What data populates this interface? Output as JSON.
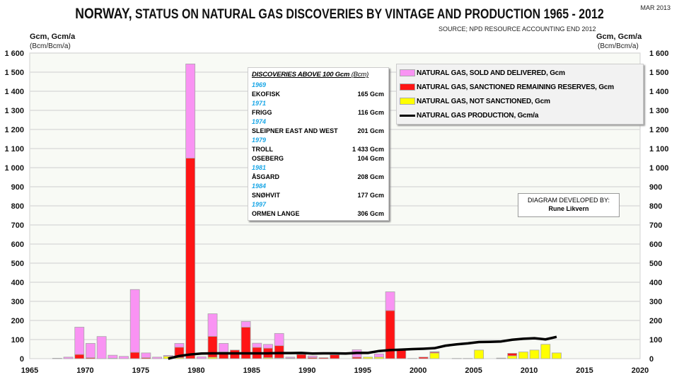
{
  "header": {
    "title_part1": "NORWAY,",
    "title_part2": " STATUS ON NATURAL GAS DISCOVERIES BY VINTAGE AND PRODUCTION 1965 - 2012",
    "date": "MAR 2013",
    "source": "SOURCE; NPD RESOURCE ACCOUNTING  END 2012",
    "left_unit": "Gcm, Gcm/a",
    "left_unit_sub": "(Bcm/Bcm/a)",
    "right_unit": "Gcm, Gcm/a",
    "right_unit_sub": "(Bcm/Bcm/a)"
  },
  "inset": {
    "heading": "DISCOVERIES ABOVE 100 Gcm",
    "heading_sub": "(Bcm)",
    "entries": [
      {
        "year": "1969"
      },
      {
        "name": "EKOFISK",
        "value": "165 Gcm"
      },
      {
        "year": "1971"
      },
      {
        "name": "FRIGG",
        "value": "116 Gcm"
      },
      {
        "year": "1974"
      },
      {
        "name": "SLEIPNER EAST AND WEST",
        "value": "201 Gcm"
      },
      {
        "year": "1979"
      },
      {
        "name": "TROLL",
        "value": "1 433 Gcm"
      },
      {
        "name": "OSEBERG",
        "value": "104 Gcm"
      },
      {
        "year": "1981"
      },
      {
        "name": "ÅSGARD",
        "value": "208 Gcm"
      },
      {
        "year": "1984"
      },
      {
        "name": "SNØHVIT",
        "value": "177 Gcm"
      },
      {
        "year": "1997"
      },
      {
        "name": "ORMEN LANGE",
        "value": "306 Gcm"
      }
    ]
  },
  "developer": {
    "label": "DIAGRAM DEVELOPED BY:",
    "name": "Rune Likvern"
  },
  "colors": {
    "sold": "#f993f3",
    "sanctioned": "#ff1515",
    "not_sanctioned": "#ffff00",
    "production": "#000000",
    "plot_bg": "#f8faf5"
  },
  "chart_data": {
    "type": "bar",
    "title": "NORWAY, STATUS ON NATURAL GAS DISCOVERIES BY VINTAGE AND PRODUCTION 1965 - 2012",
    "xlabel": "",
    "ylabel": "Gcm, Gcm/a",
    "xlim": [
      1965,
      2020
    ],
    "ylim": [
      0,
      1600
    ],
    "x_ticks": [
      1965,
      1970,
      1975,
      1980,
      1985,
      1990,
      1995,
      2000,
      2005,
      2010,
      2015,
      2020
    ],
    "y_ticks": [
      0,
      100,
      200,
      300,
      400,
      500,
      600,
      700,
      800,
      900,
      1000,
      1100,
      1200,
      1300,
      1400,
      1500,
      1600
    ],
    "y_tick_labels": [
      "0",
      "100",
      "200",
      "300",
      "400",
      "500",
      "600",
      "700",
      "800",
      "900",
      "1 000",
      "1 100",
      "1 200",
      "1 300",
      "1 400",
      "1 500",
      "1 600"
    ],
    "grid": true,
    "legend_position": "top-right",
    "legend": [
      {
        "key": "sold",
        "label": "NATURAL GAS, SOLD AND DELIVERED, Gcm"
      },
      {
        "key": "sanctioned",
        "label": "NATURAL GAS, SANCTIONED REMAINING RESERVES,  Gcm"
      },
      {
        "key": "not_sanctioned",
        "label": "NATURAL GAS, NOT SANCTIONED,  Gcm"
      },
      {
        "key": "production",
        "label": "NATURAL GAS PRODUCTION,  Gcm/a"
      }
    ],
    "years": [
      1967,
      1968,
      1969,
      1970,
      1971,
      1972,
      1973,
      1974,
      1975,
      1976,
      1977,
      1978,
      1979,
      1980,
      1981,
      1982,
      1983,
      1984,
      1985,
      1986,
      1987,
      1988,
      1989,
      1990,
      1991,
      1992,
      1993,
      1994,
      1995,
      1996,
      1997,
      1998,
      1999,
      2000,
      2001,
      2002,
      2003,
      2004,
      2005,
      2006,
      2007,
      2008,
      2009,
      2010,
      2011,
      2012
    ],
    "series": [
      {
        "name": "not_sanctioned",
        "values": [
          0,
          0,
          0,
          0,
          0,
          0,
          0,
          0,
          0,
          0,
          12,
          5,
          0,
          0,
          7,
          0,
          0,
          0,
          0,
          5,
          3,
          0,
          0,
          0,
          0,
          0,
          0,
          0,
          8,
          8,
          0,
          0,
          0,
          0,
          30,
          0,
          0,
          0,
          45,
          0,
          0,
          15,
          35,
          45,
          75,
          30
        ]
      },
      {
        "name": "sanctioned",
        "values": [
          0,
          0,
          22,
          5,
          0,
          2,
          0,
          33,
          5,
          0,
          0,
          55,
          1050,
          0,
          110,
          35,
          45,
          165,
          59,
          50,
          65,
          3,
          22,
          6,
          5,
          20,
          0,
          8,
          0,
          0,
          252,
          48,
          0,
          8,
          5,
          0,
          0,
          0,
          0,
          0,
          0,
          13,
          0,
          0,
          0,
          0
        ]
      },
      {
        "name": "sold",
        "values": [
          2,
          8,
          143,
          75,
          116,
          16,
          12,
          329,
          25,
          8,
          5,
          20,
          493,
          10,
          118,
          45,
          0,
          30,
          22,
          20,
          64,
          5,
          0,
          8,
          0,
          0,
          0,
          39,
          0,
          17,
          98,
          0,
          1,
          0,
          2,
          0,
          1,
          1,
          0,
          0,
          3,
          0,
          0,
          0,
          0,
          0
        ]
      }
    ],
    "production": {
      "years": [
        1977,
        1978,
        1979,
        1980,
        1981,
        1982,
        1983,
        1984,
        1985,
        1986,
        1987,
        1988,
        1989,
        1990,
        1991,
        1992,
        1993,
        1994,
        1995,
        1996,
        1997,
        1998,
        1999,
        2000,
        2001,
        2002,
        2003,
        2004,
        2005,
        2006,
        2007,
        2008,
        2009,
        2010,
        2011,
        2012
      ],
      "values": [
        0,
        14,
        22,
        27,
        28,
        28,
        28,
        28,
        28,
        28,
        29,
        29,
        30,
        27,
        28,
        28,
        27,
        30,
        30,
        40,
        45,
        47,
        50,
        52,
        55,
        68,
        75,
        80,
        87,
        88,
        90,
        99,
        104,
        107,
        101,
        114
      ]
    }
  }
}
